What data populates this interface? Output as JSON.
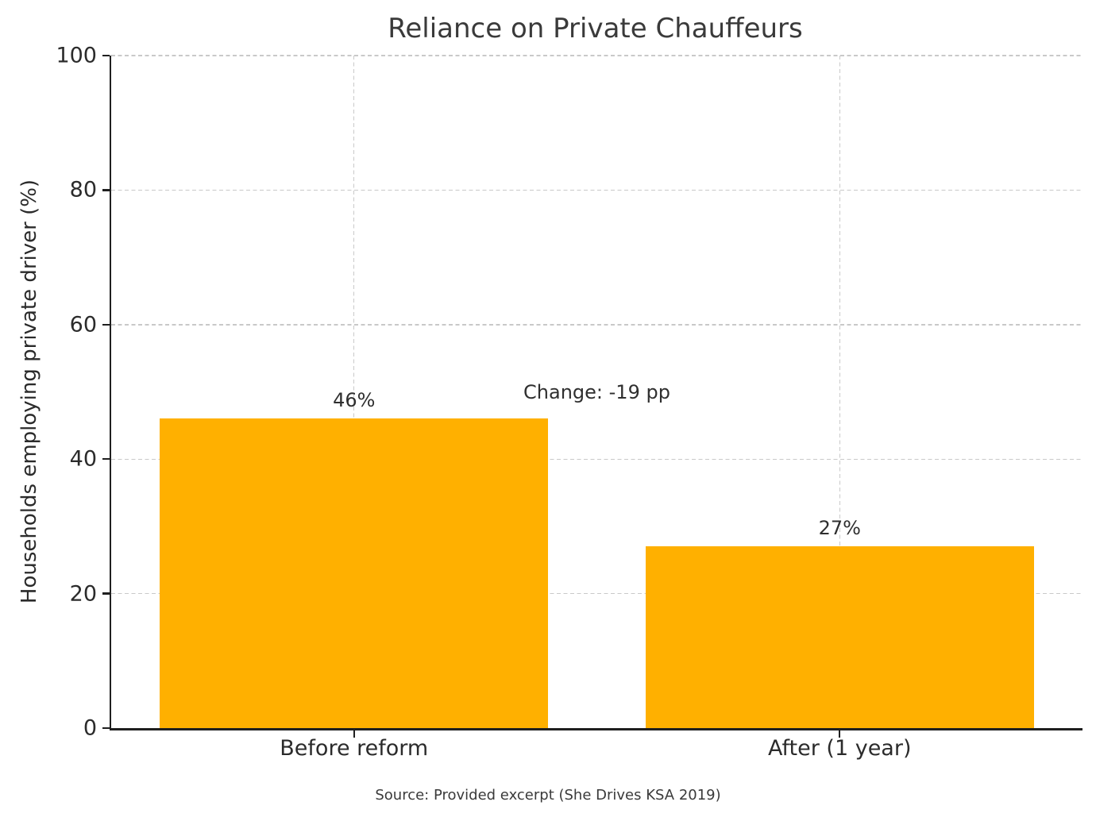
{
  "title": "Reliance on Private Chauffeurs",
  "source_caption": "Source: Provided excerpt (She Drives KSA 2019)",
  "colors": {
    "bar": "#FFB000",
    "text": "#2b2b2b",
    "title_text": "#3a3a3a",
    "grid": "#c9c9c9",
    "spine": "#1f1f1f"
  },
  "chart_data": {
    "type": "bar",
    "title": "Reliance on Private Chauffeurs",
    "categories": [
      "Before reform",
      "After (1 year)"
    ],
    "values": [
      46,
      27
    ],
    "bar_labels": [
      "46%",
      "27%"
    ],
    "xlabel": "",
    "ylabel": "Households employing private driver (%)",
    "ylim": [
      0,
      100
    ],
    "yticks": [
      0,
      20,
      40,
      60,
      80,
      100
    ],
    "bar_width_fraction": 0.8,
    "bar_color": "#FFB000",
    "grid": "dashed, axis-below, horizontal at yticks and vertical at category centers",
    "legend": "none",
    "annotation": {
      "text": "Change: -19 pp",
      "x_axis_fraction": 0.5,
      "y_value": 50
    }
  }
}
